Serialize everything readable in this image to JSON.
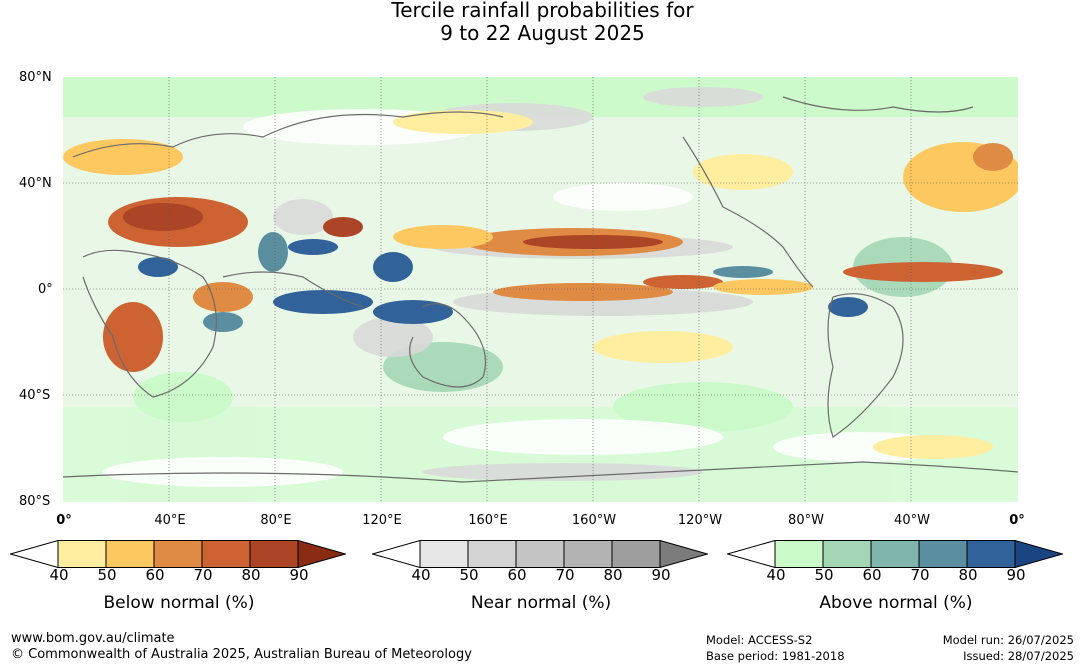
{
  "title": {
    "line1": "Tercile rainfall probabilities for",
    "line2": "9 to 22 August 2025"
  },
  "map": {
    "lat_labels": [
      "80°N",
      "40°N",
      "0°",
      "40°S",
      "80°S"
    ],
    "lon_labels": [
      "0°",
      "40°E",
      "80°E",
      "120°E",
      "160°E",
      "160°W",
      "120°W",
      "80°W",
      "40°W",
      "0°"
    ]
  },
  "colorbars": [
    {
      "id": "below",
      "title": "Below normal (%)",
      "ticks": [
        "40",
        "50",
        "60",
        "70",
        "80",
        "90"
      ],
      "colors": [
        "#ffffff",
        "#ffeda0",
        "#fec861",
        "#e08b44",
        "#cd6233",
        "#ab4526",
        "#8a2b14"
      ]
    },
    {
      "id": "near",
      "title": "Near normal (%)",
      "ticks": [
        "40",
        "50",
        "60",
        "70",
        "80",
        "90"
      ],
      "colors": [
        "#ffffff",
        "#e6e6e6",
        "#d4d4d4",
        "#c4c4c4",
        "#b3b3b3",
        "#9e9e9e",
        "#7c7c7c"
      ]
    },
    {
      "id": "above",
      "title": "Above normal (%)",
      "ticks": [
        "40",
        "50",
        "60",
        "70",
        "80",
        "90"
      ],
      "colors": [
        "#ffffff",
        "#c9fac8",
        "#a4d6b6",
        "#80b5ae",
        "#5b8fa0",
        "#32629a",
        "#1a4580"
      ]
    }
  ],
  "footer": {
    "url": "www.bom.gov.au/climate",
    "copyright": "© Commonwealth of Australia 2025, Australian Bureau of Meteorology",
    "model": "Model: ACCESS-S2",
    "base_period": "Base period: 1981-2018",
    "model_run": "Model run: 26/07/2025",
    "issued": "Issued: 28/07/2025"
  }
}
